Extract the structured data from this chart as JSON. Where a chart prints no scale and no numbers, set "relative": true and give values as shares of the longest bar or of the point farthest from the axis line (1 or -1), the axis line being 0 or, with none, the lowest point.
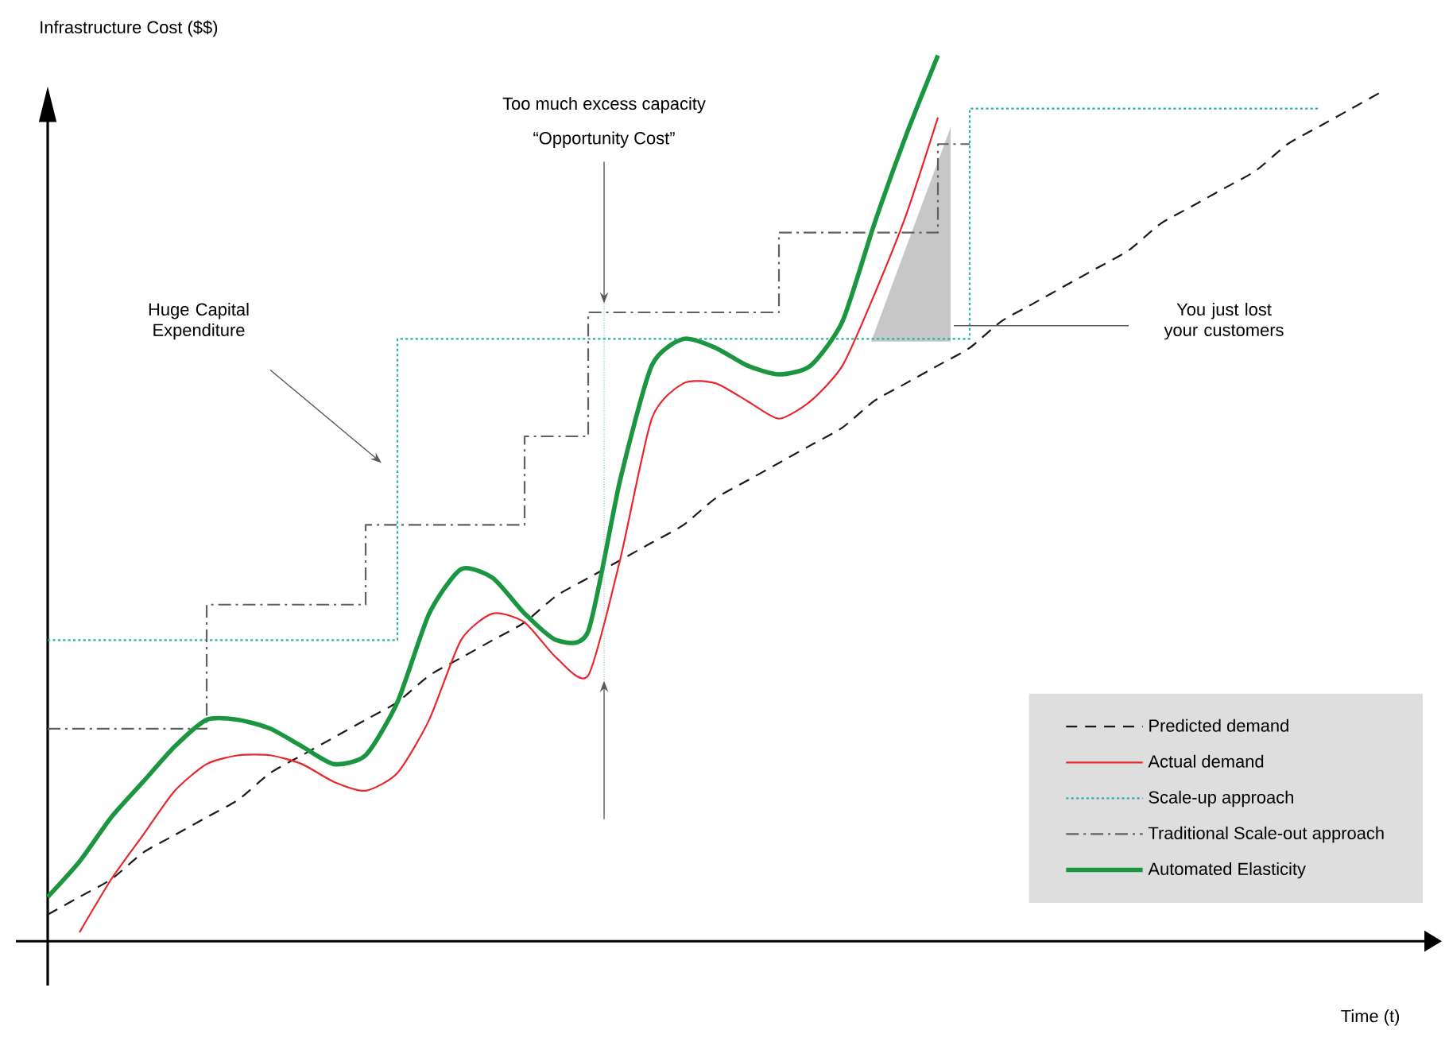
{
  "chart_data": {
    "type": "line",
    "relative": true,
    "xlabel": "Time (t)",
    "ylabel": "Infrastructure Cost ($$)",
    "categories": [
      null,
      null,
      null,
      null,
      null,
      null,
      null,
      null,
      null,
      null,
      null,
      null,
      null,
      null,
      null,
      null,
      null,
      null,
      null,
      null,
      null,
      null,
      null,
      null,
      null,
      null,
      null,
      null,
      null,
      null,
      null,
      null,
      null,
      null,
      null,
      null,
      null,
      null,
      null,
      null,
      null,
      null,
      null
    ],
    "series": [
      {
        "name": "Predicted demand",
        "color": "#1a1a1a",
        "line_style": "dashed",
        "values": [
          0.03,
          0.05,
          0.07,
          0.1,
          0.12,
          0.14,
          0.16,
          0.19,
          0.21,
          0.23,
          0.25,
          0.27,
          0.3,
          0.32,
          0.34,
          0.36,
          0.39,
          0.41,
          0.43,
          0.45,
          0.47,
          0.5,
          0.52,
          0.54,
          0.56,
          0.58,
          0.61,
          0.63,
          0.65,
          0.67,
          0.7,
          0.72,
          0.74,
          0.76,
          0.78,
          0.81,
          0.83,
          0.85,
          0.87,
          0.9,
          0.92,
          0.94,
          0.96
        ]
      },
      {
        "name": "Actual demand",
        "color": "#e8262b",
        "line_style": "solid",
        "values": [
          null,
          0.01,
          0.07,
          0.12,
          0.17,
          0.2,
          0.21,
          0.21,
          0.2,
          0.18,
          0.17,
          0.19,
          0.25,
          0.34,
          0.37,
          0.36,
          0.32,
          0.3,
          0.43,
          0.59,
          0.63,
          0.63,
          0.61,
          0.59,
          0.61,
          0.65,
          0.73,
          0.82,
          0.93,
          null,
          null,
          null,
          null,
          null,
          null,
          null,
          null,
          null,
          null,
          null,
          null,
          null,
          null
        ]
      },
      {
        "name": "Scale-up approach",
        "color": "#27b3a6",
        "line_style": "dotted",
        "type": "step",
        "values": [
          0.34,
          0.34,
          0.34,
          0.34,
          0.34,
          0.34,
          0.34,
          0.34,
          0.34,
          0.34,
          0.34,
          0.68,
          0.68,
          0.68,
          0.68,
          0.68,
          0.68,
          0.68,
          0.68,
          0.68,
          0.68,
          0.68,
          0.68,
          0.68,
          0.68,
          0.68,
          0.68,
          0.68,
          0.68,
          0.94,
          0.94,
          0.94,
          0.94,
          0.94,
          0.94,
          0.94,
          0.94,
          0.94,
          0.94,
          0.94,
          0.94,
          null,
          null
        ]
      },
      {
        "name": "Traditional Scale-out approach",
        "color": "#606060",
        "line_style": "dashdot",
        "type": "step",
        "values": [
          0.24,
          0.24,
          0.24,
          0.24,
          0.24,
          0.38,
          0.38,
          0.38,
          0.38,
          0.38,
          0.47,
          0.47,
          0.47,
          0.47,
          0.47,
          0.57,
          0.57,
          0.71,
          0.71,
          0.71,
          0.71,
          0.71,
          0.71,
          0.8,
          0.8,
          0.8,
          0.8,
          0.8,
          0.9,
          0.9,
          null,
          null,
          null,
          null,
          null,
          null,
          null,
          null,
          null,
          null,
          null,
          null,
          null
        ]
      },
      {
        "name": "Automated Elasticity",
        "color": "#1a9640",
        "line_style": "solid",
        "values": [
          0.05,
          0.09,
          0.14,
          0.18,
          0.22,
          0.25,
          0.25,
          0.24,
          0.22,
          0.2,
          0.21,
          0.27,
          0.37,
          0.42,
          0.41,
          0.37,
          0.34,
          0.35,
          0.52,
          0.65,
          0.68,
          0.67,
          0.65,
          0.64,
          0.65,
          0.7,
          0.81,
          0.91,
          1.0,
          null,
          null,
          null,
          null,
          null,
          null,
          null,
          null,
          null,
          null,
          null,
          null,
          null,
          null
        ]
      }
    ],
    "legend": "bottom right",
    "annotations": [
      "Huge Capital Expenditure",
      "Too much excess capacity",
      "“Opportunity Cost”",
      "You just lost your customers"
    ]
  }
}
